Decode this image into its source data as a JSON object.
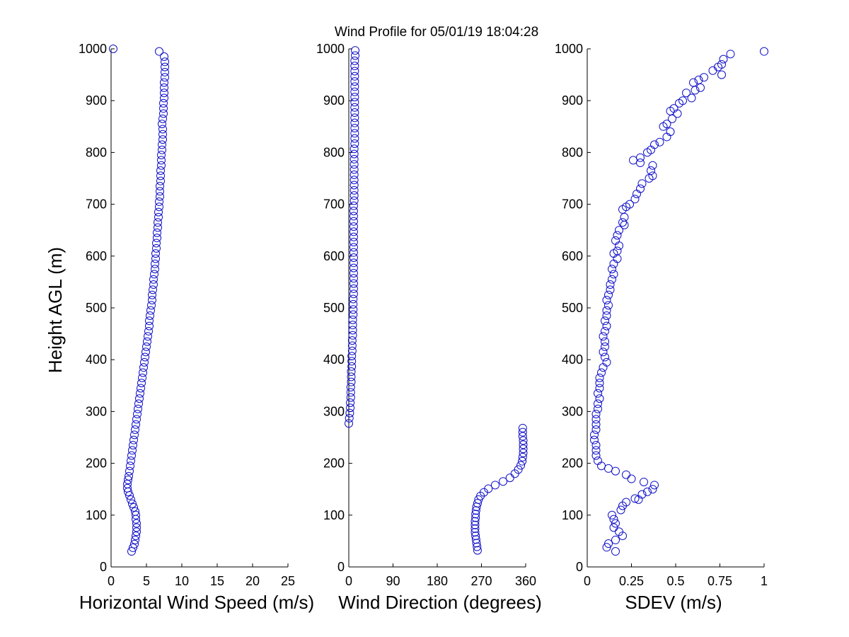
{
  "title": "Wind Profile for  05/01/19 18:04:28",
  "ylabel": "Height AGL (m)",
  "colors": {
    "marker": "#1010c8",
    "axes": "#000000",
    "background": "#ffffff"
  },
  "chart_data": [
    {
      "type": "scatter",
      "xlabel": "Horizontal Wind Speed (m/s)",
      "ylabel": "Height AGL (m)",
      "xlim": [
        0,
        25
      ],
      "ylim": [
        0,
        1000
      ],
      "x_ticks": [
        "0",
        "5",
        "10",
        "15",
        "20",
        "25"
      ],
      "y_ticks": [
        "0",
        "100",
        "200",
        "300",
        "400",
        "500",
        "600",
        "700",
        "800",
        "900",
        "1000"
      ],
      "marker": "circle-open",
      "points": [
        [
          0.3,
          1000
        ],
        [
          6.8,
          995
        ],
        [
          7.5,
          985
        ],
        [
          7.6,
          975
        ],
        [
          7.6,
          965
        ],
        [
          7.6,
          955
        ],
        [
          7.6,
          945
        ],
        [
          7.5,
          935
        ],
        [
          7.5,
          925
        ],
        [
          7.5,
          915
        ],
        [
          7.5,
          905
        ],
        [
          7.4,
          895
        ],
        [
          7.4,
          885
        ],
        [
          7.4,
          875
        ],
        [
          7.3,
          865
        ],
        [
          7.2,
          855
        ],
        [
          7.3,
          845
        ],
        [
          7.3,
          835
        ],
        [
          7.3,
          825
        ],
        [
          7.2,
          815
        ],
        [
          7.2,
          805
        ],
        [
          7.1,
          795
        ],
        [
          7.1,
          785
        ],
        [
          7.1,
          775
        ],
        [
          7.0,
          765
        ],
        [
          7.0,
          755
        ],
        [
          7.0,
          745
        ],
        [
          6.9,
          735
        ],
        [
          6.9,
          725
        ],
        [
          6.9,
          715
        ],
        [
          6.8,
          705
        ],
        [
          6.8,
          695
        ],
        [
          6.7,
          685
        ],
        [
          6.7,
          675
        ],
        [
          6.6,
          665
        ],
        [
          6.6,
          655
        ],
        [
          6.5,
          645
        ],
        [
          6.5,
          635
        ],
        [
          6.4,
          625
        ],
        [
          6.4,
          615
        ],
        [
          6.3,
          605
        ],
        [
          6.3,
          595
        ],
        [
          6.2,
          585
        ],
        [
          6.2,
          575
        ],
        [
          6.1,
          565
        ],
        [
          6.0,
          555
        ],
        [
          6.0,
          545
        ],
        [
          5.9,
          535
        ],
        [
          5.8,
          525
        ],
        [
          5.8,
          515
        ],
        [
          5.7,
          505
        ],
        [
          5.6,
          495
        ],
        [
          5.5,
          485
        ],
        [
          5.4,
          475
        ],
        [
          5.4,
          465
        ],
        [
          5.3,
          455
        ],
        [
          5.2,
          445
        ],
        [
          5.1,
          435
        ],
        [
          5.0,
          425
        ],
        [
          4.9,
          415
        ],
        [
          4.8,
          405
        ],
        [
          4.7,
          395
        ],
        [
          4.6,
          385
        ],
        [
          4.5,
          375
        ],
        [
          4.4,
          365
        ],
        [
          4.3,
          355
        ],
        [
          4.2,
          345
        ],
        [
          4.1,
          335
        ],
        [
          4.0,
          325
        ],
        [
          3.9,
          315
        ],
        [
          3.8,
          305
        ],
        [
          3.7,
          295
        ],
        [
          3.6,
          285
        ],
        [
          3.5,
          275
        ],
        [
          3.4,
          265
        ],
        [
          3.3,
          255
        ],
        [
          3.2,
          245
        ],
        [
          3.1,
          235
        ],
        [
          3.0,
          225
        ],
        [
          2.9,
          215
        ],
        [
          2.8,
          205
        ],
        [
          2.7,
          195
        ],
        [
          2.6,
          185
        ],
        [
          2.5,
          175
        ],
        [
          2.4,
          168
        ],
        [
          2.3,
          160
        ],
        [
          2.3,
          152
        ],
        [
          2.4,
          145
        ],
        [
          2.6,
          138
        ],
        [
          2.8,
          130
        ],
        [
          3.0,
          122
        ],
        [
          3.2,
          115
        ],
        [
          3.4,
          107
        ],
        [
          3.5,
          100
        ],
        [
          3.5,
          92
        ],
        [
          3.6,
          84
        ],
        [
          3.6,
          76
        ],
        [
          3.6,
          68
        ],
        [
          3.5,
          60
        ],
        [
          3.4,
          52
        ],
        [
          3.3,
          44
        ],
        [
          3.1,
          37
        ],
        [
          2.9,
          30
        ]
      ]
    },
    {
      "type": "scatter",
      "xlabel": "Wind Direction (degrees)",
      "ylabel": "",
      "xlim": [
        0,
        360
      ],
      "ylim": [
        0,
        1000
      ],
      "x_ticks": [
        "0",
        "90",
        "180",
        "270",
        "360"
      ],
      "y_ticks": [
        "0",
        "100",
        "200",
        "300",
        "400",
        "500",
        "600",
        "700",
        "800",
        "900",
        "1000"
      ],
      "marker": "circle-open",
      "points": [
        [
          13,
          997
        ],
        [
          13,
          987
        ],
        [
          12,
          977
        ],
        [
          12,
          967
        ],
        [
          12,
          957
        ],
        [
          12,
          947
        ],
        [
          12,
          937
        ],
        [
          12,
          927
        ],
        [
          12,
          917
        ],
        [
          12,
          907
        ],
        [
          12,
          897
        ],
        [
          12,
          887
        ],
        [
          12,
          877
        ],
        [
          12,
          867
        ],
        [
          12,
          857
        ],
        [
          12,
          847
        ],
        [
          12,
          837
        ],
        [
          12,
          827
        ],
        [
          12,
          817
        ],
        [
          11,
          807
        ],
        [
          11,
          797
        ],
        [
          11,
          787
        ],
        [
          11,
          777
        ],
        [
          11,
          767
        ],
        [
          11,
          757
        ],
        [
          11,
          747
        ],
        [
          11,
          737
        ],
        [
          11,
          727
        ],
        [
          11,
          717
        ],
        [
          11,
          707
        ],
        [
          10,
          697
        ],
        [
          10,
          687
        ],
        [
          10,
          677
        ],
        [
          10,
          667
        ],
        [
          10,
          657
        ],
        [
          10,
          647
        ],
        [
          10,
          637
        ],
        [
          10,
          627
        ],
        [
          10,
          617
        ],
        [
          10,
          607
        ],
        [
          10,
          597
        ],
        [
          10,
          587
        ],
        [
          10,
          577
        ],
        [
          10,
          567
        ],
        [
          10,
          557
        ],
        [
          10,
          547
        ],
        [
          10,
          537
        ],
        [
          10,
          527
        ],
        [
          9,
          517
        ],
        [
          9,
          507
        ],
        [
          9,
          497
        ],
        [
          9,
          487
        ],
        [
          8,
          477
        ],
        [
          8,
          467
        ],
        [
          8,
          457
        ],
        [
          8,
          447
        ],
        [
          7,
          437
        ],
        [
          7,
          427
        ],
        [
          7,
          417
        ],
        [
          6,
          407
        ],
        [
          6,
          397
        ],
        [
          6,
          387
        ],
        [
          5,
          377
        ],
        [
          5,
          367
        ],
        [
          5,
          357
        ],
        [
          4,
          347
        ],
        [
          4,
          337
        ],
        [
          4,
          327
        ],
        [
          3,
          317
        ],
        [
          3,
          307
        ],
        [
          2,
          297
        ],
        [
          1,
          287
        ],
        [
          0,
          277
        ],
        [
          354,
          268
        ],
        [
          354,
          260
        ],
        [
          354,
          252
        ],
        [
          355,
          244
        ],
        [
          355,
          236
        ],
        [
          355,
          228
        ],
        [
          355,
          220
        ],
        [
          354,
          212
        ],
        [
          353,
          204
        ],
        [
          350,
          196
        ],
        [
          345,
          188
        ],
        [
          338,
          180
        ],
        [
          328,
          172
        ],
        [
          314,
          165
        ],
        [
          298,
          158
        ],
        [
          284,
          151
        ],
        [
          275,
          144
        ],
        [
          268,
          137
        ],
        [
          264,
          130
        ],
        [
          262,
          123
        ],
        [
          260,
          116
        ],
        [
          259,
          109
        ],
        [
          258,
          102
        ],
        [
          258,
          95
        ],
        [
          257,
          88
        ],
        [
          257,
          81
        ],
        [
          257,
          74
        ],
        [
          257,
          67
        ],
        [
          258,
          60
        ],
        [
          259,
          53
        ],
        [
          260,
          46
        ],
        [
          261,
          39
        ],
        [
          262,
          32
        ]
      ]
    },
    {
      "type": "scatter",
      "xlabel": "SDEV  (m/s)",
      "ylabel": "",
      "xlim": [
        0,
        1
      ],
      "ylim": [
        0,
        1000
      ],
      "x_ticks": [
        "0",
        "0.25",
        "0.5",
        "0.75",
        "1"
      ],
      "y_ticks": [
        "0",
        "100",
        "200",
        "300",
        "400",
        "500",
        "600",
        "700",
        "800",
        "900",
        "1000"
      ],
      "marker": "circle-open",
      "points": [
        [
          1.0,
          995
        ],
        [
          0.81,
          990
        ],
        [
          0.77,
          980
        ],
        [
          0.76,
          970
        ],
        [
          0.74,
          965
        ],
        [
          0.71,
          958
        ],
        [
          0.76,
          950
        ],
        [
          0.66,
          945
        ],
        [
          0.6,
          935
        ],
        [
          0.63,
          940
        ],
        [
          0.64,
          925
        ],
        [
          0.61,
          920
        ],
        [
          0.56,
          915
        ],
        [
          0.59,
          905
        ],
        [
          0.52,
          895
        ],
        [
          0.54,
          900
        ],
        [
          0.49,
          885
        ],
        [
          0.51,
          875
        ],
        [
          0.47,
          880
        ],
        [
          0.48,
          865
        ],
        [
          0.45,
          855
        ],
        [
          0.43,
          850
        ],
        [
          0.47,
          840
        ],
        [
          0.45,
          830
        ],
        [
          0.41,
          820
        ],
        [
          0.38,
          815
        ],
        [
          0.36,
          805
        ],
        [
          0.34,
          800
        ],
        [
          0.3,
          790
        ],
        [
          0.26,
          785
        ],
        [
          0.3,
          780
        ],
        [
          0.37,
          775
        ],
        [
          0.36,
          765
        ],
        [
          0.37,
          755
        ],
        [
          0.35,
          750
        ],
        [
          0.31,
          740
        ],
        [
          0.3,
          730
        ],
        [
          0.28,
          720
        ],
        [
          0.27,
          710
        ],
        [
          0.24,
          700
        ],
        [
          0.22,
          695
        ],
        [
          0.2,
          690
        ],
        [
          0.21,
          675
        ],
        [
          0.2,
          665
        ],
        [
          0.21,
          660
        ],
        [
          0.18,
          650
        ],
        [
          0.17,
          640
        ],
        [
          0.16,
          630
        ],
        [
          0.18,
          620
        ],
        [
          0.17,
          610
        ],
        [
          0.15,
          605
        ],
        [
          0.17,
          595
        ],
        [
          0.15,
          585
        ],
        [
          0.14,
          575
        ],
        [
          0.15,
          565
        ],
        [
          0.14,
          555
        ],
        [
          0.13,
          545
        ],
        [
          0.13,
          535
        ],
        [
          0.12,
          525
        ],
        [
          0.11,
          515
        ],
        [
          0.12,
          505
        ],
        [
          0.11,
          495
        ],
        [
          0.11,
          485
        ],
        [
          0.1,
          475
        ],
        [
          0.11,
          465
        ],
        [
          0.1,
          455
        ],
        [
          0.09,
          445
        ],
        [
          0.1,
          435
        ],
        [
          0.1,
          425
        ],
        [
          0.09,
          415
        ],
        [
          0.1,
          405
        ],
        [
          0.11,
          395
        ],
        [
          0.09,
          385
        ],
        [
          0.08,
          375
        ],
        [
          0.07,
          365
        ],
        [
          0.07,
          355
        ],
        [
          0.07,
          345
        ],
        [
          0.06,
          335
        ],
        [
          0.07,
          325
        ],
        [
          0.06,
          315
        ],
        [
          0.06,
          305
        ],
        [
          0.05,
          295
        ],
        [
          0.05,
          285
        ],
        [
          0.05,
          275
        ],
        [
          0.05,
          265
        ],
        [
          0.04,
          255
        ],
        [
          0.04,
          245
        ],
        [
          0.05,
          235
        ],
        [
          0.05,
          225
        ],
        [
          0.05,
          215
        ],
        [
          0.06,
          205
        ],
        [
          0.08,
          195
        ],
        [
          0.12,
          190
        ],
        [
          0.16,
          185
        ],
        [
          0.22,
          178
        ],
        [
          0.25,
          170
        ],
        [
          0.32,
          164
        ],
        [
          0.38,
          158
        ],
        [
          0.37,
          150
        ],
        [
          0.34,
          145
        ],
        [
          0.31,
          140
        ],
        [
          0.27,
          132
        ],
        [
          0.29,
          130
        ],
        [
          0.22,
          125
        ],
        [
          0.2,
          118
        ],
        [
          0.19,
          110
        ],
        [
          0.14,
          100
        ],
        [
          0.15,
          92
        ],
        [
          0.16,
          84
        ],
        [
          0.15,
          76
        ],
        [
          0.18,
          68
        ],
        [
          0.2,
          60
        ],
        [
          0.16,
          52
        ],
        [
          0.12,
          45
        ],
        [
          0.11,
          38
        ],
        [
          0.16,
          30
        ]
      ]
    }
  ]
}
